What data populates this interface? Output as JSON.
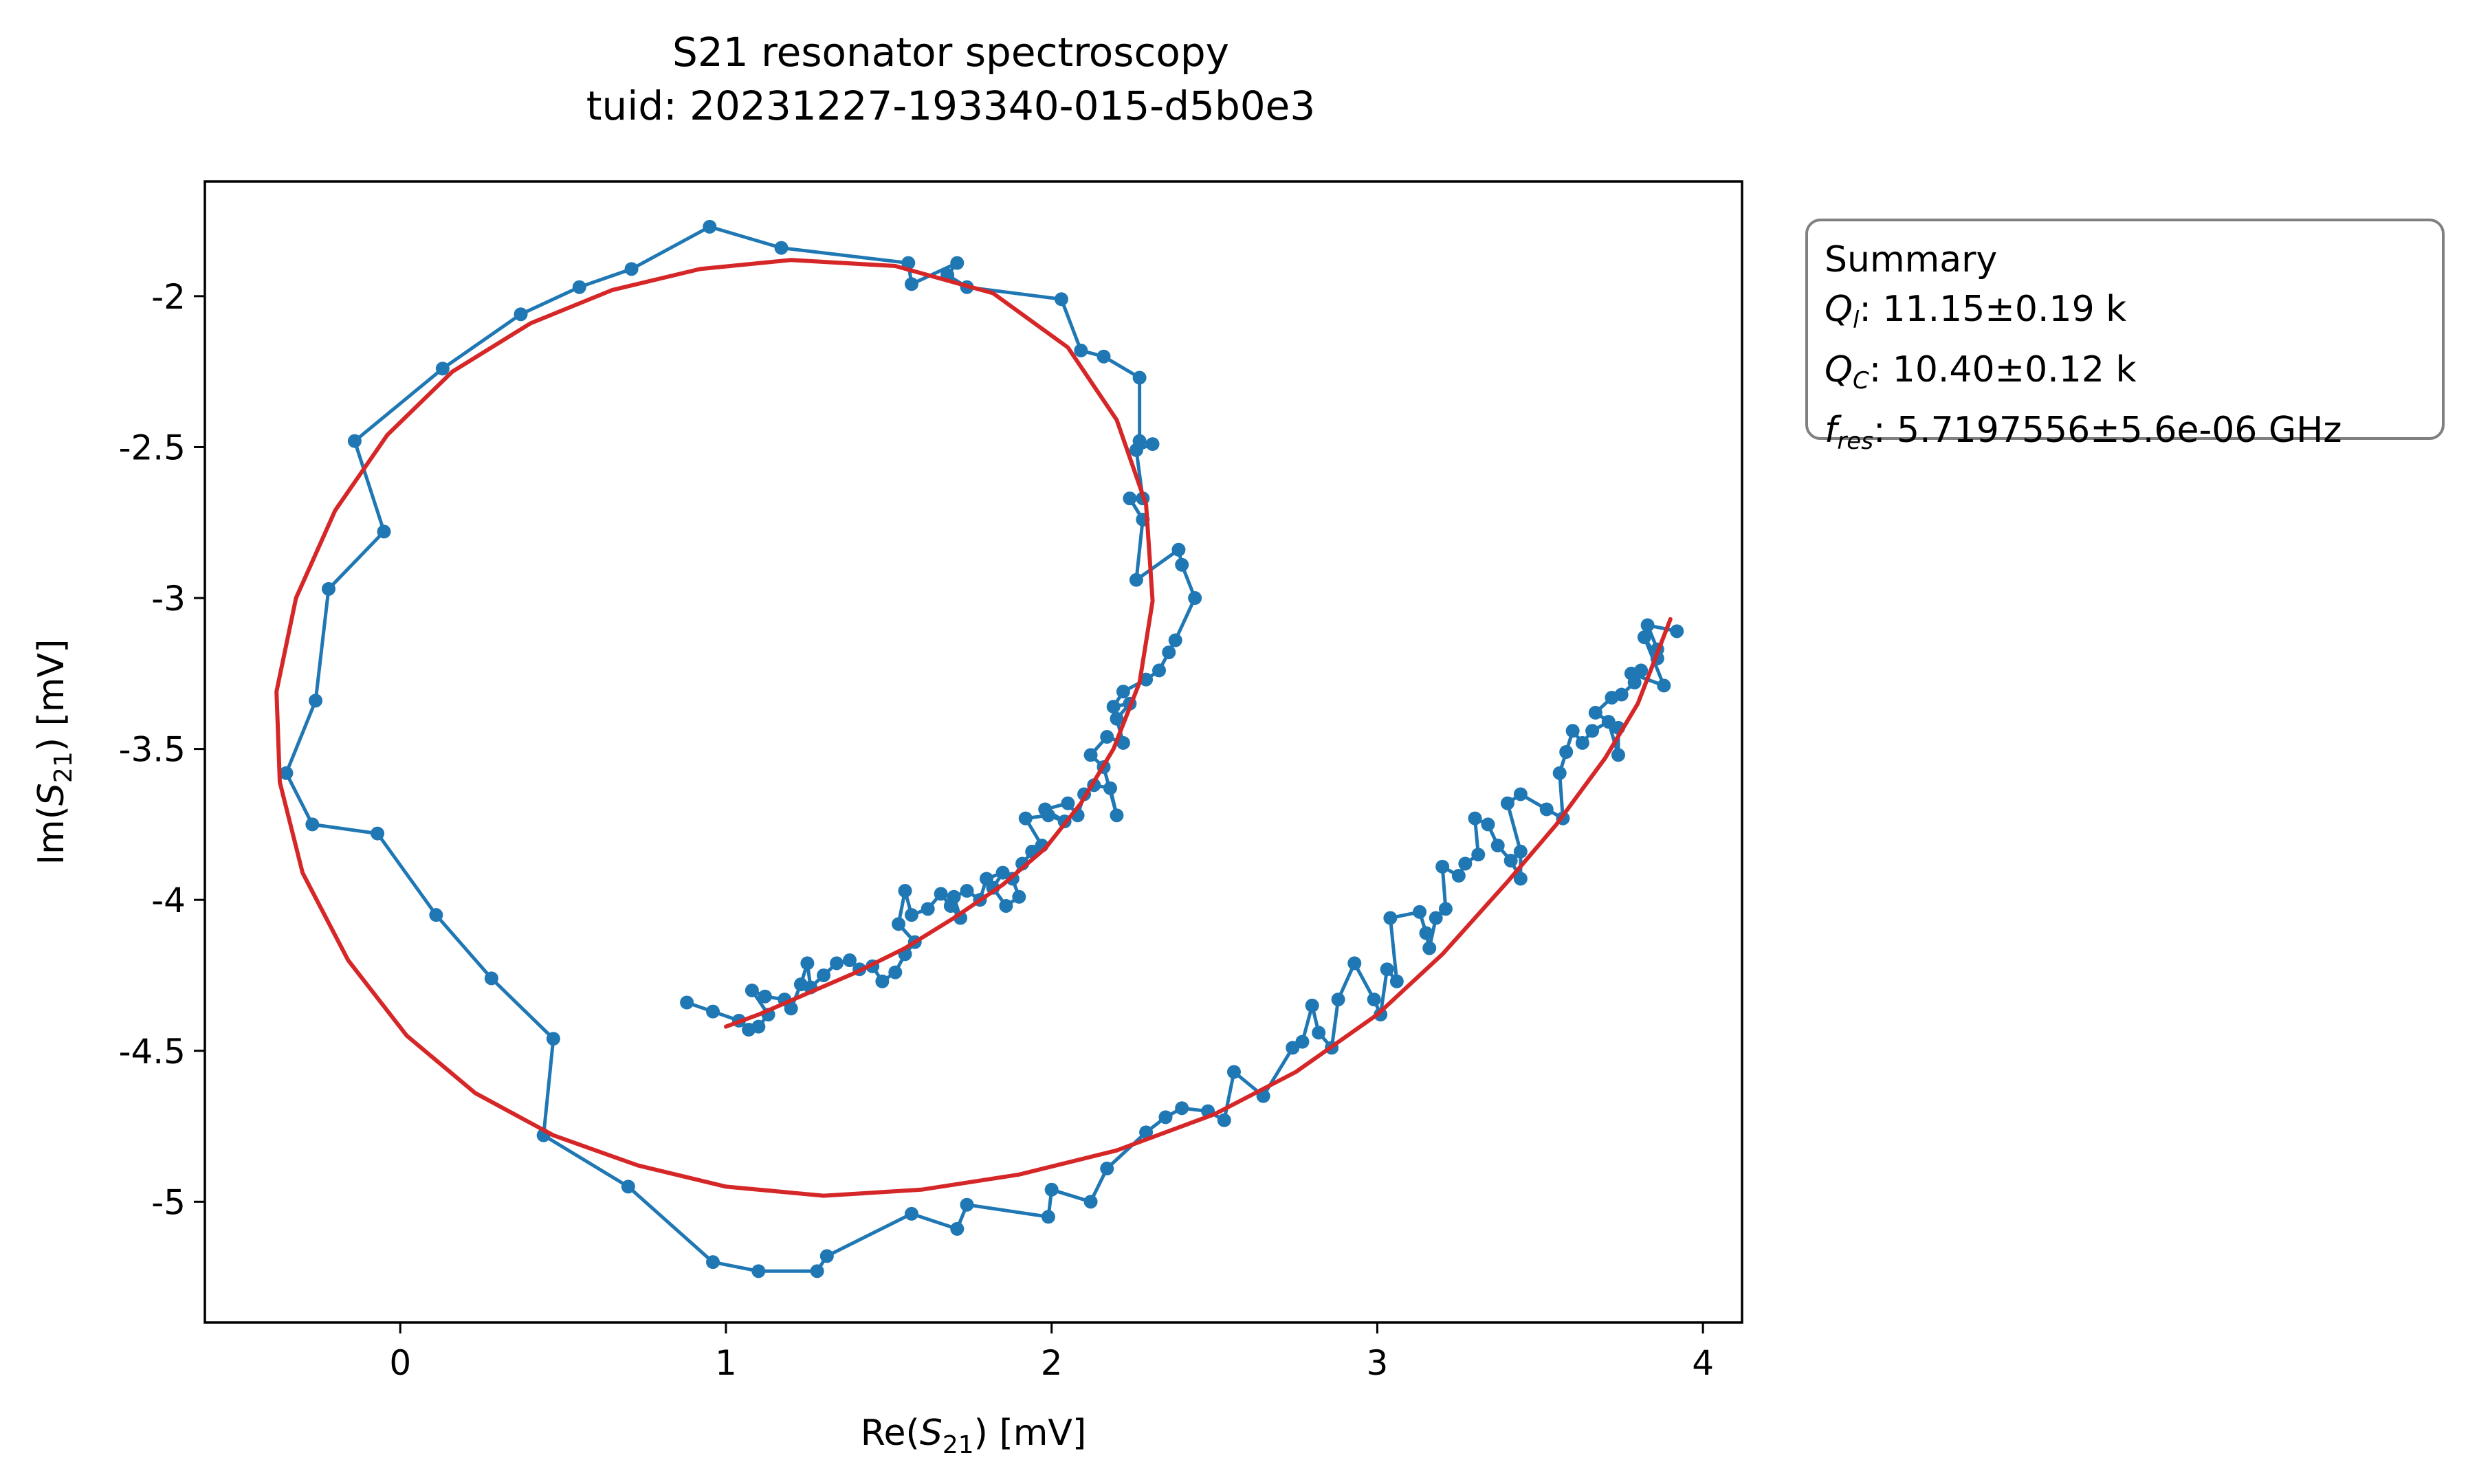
{
  "chart_data": {
    "type": "scatter",
    "title": "S21 resonator spectroscopy",
    "subtitle": "tuid: 20231227-193340-015-d5b0e3",
    "xlabel": {
      "prefix": "Re(",
      "symbol": "S",
      "subscript": "21",
      "suffix": ") [mV]"
    },
    "ylabel": {
      "prefix": "Im(",
      "symbol": "S",
      "subscript": "21",
      "suffix": ") [mV]"
    },
    "xlim": [
      -0.6,
      4.12
    ],
    "ylim": [
      -5.4,
      -1.62
    ],
    "xticks": [
      0,
      1,
      2,
      3,
      4
    ],
    "xtick_labels": [
      "0",
      "1",
      "2",
      "3",
      "4"
    ],
    "yticks": [
      -2,
      -2.5,
      -3,
      -3.5,
      -4,
      -4.5,
      -5
    ],
    "ytick_labels": [
      "-2",
      "-2.5",
      "-3",
      "-3.5",
      "-4",
      "-4.5",
      "-5"
    ],
    "grid": false,
    "series": [
      {
        "kind": "data",
        "color": "#1f77b4",
        "marker": "circle",
        "points": [
          [
            0.88,
            -4.34
          ],
          [
            0.96,
            -4.37
          ],
          [
            1.04,
            -4.4
          ],
          [
            1.07,
            -4.43
          ],
          [
            1.1,
            -4.42
          ],
          [
            1.13,
            -4.38
          ],
          [
            1.08,
            -4.3
          ],
          [
            1.12,
            -4.32
          ],
          [
            1.18,
            -4.33
          ],
          [
            1.2,
            -4.36
          ],
          [
            1.23,
            -4.28
          ],
          [
            1.25,
            -4.21
          ],
          [
            1.26,
            -4.29
          ],
          [
            1.3,
            -4.25
          ],
          [
            1.34,
            -4.21
          ],
          [
            1.38,
            -4.2
          ],
          [
            1.41,
            -4.23
          ],
          [
            1.45,
            -4.22
          ],
          [
            1.48,
            -4.27
          ],
          [
            1.52,
            -4.24
          ],
          [
            1.55,
            -4.18
          ],
          [
            1.58,
            -4.14
          ],
          [
            1.53,
            -4.08
          ],
          [
            1.55,
            -3.97
          ],
          [
            1.57,
            -4.05
          ],
          [
            1.62,
            -4.03
          ],
          [
            1.66,
            -3.98
          ],
          [
            1.69,
            -4.02
          ],
          [
            1.72,
            -4.06
          ],
          [
            1.7,
            -3.99
          ],
          [
            1.74,
            -3.97
          ],
          [
            1.78,
            -4.0
          ],
          [
            1.8,
            -3.93
          ],
          [
            1.85,
            -3.91
          ],
          [
            1.82,
            -3.96
          ],
          [
            1.86,
            -4.02
          ],
          [
            1.9,
            -3.99
          ],
          [
            1.88,
            -3.93
          ],
          [
            1.91,
            -3.88
          ],
          [
            1.94,
            -3.84
          ],
          [
            1.97,
            -3.82
          ],
          [
            1.92,
            -3.73
          ],
          [
            1.99,
            -3.72
          ],
          [
            2.04,
            -3.74
          ],
          [
            1.98,
            -3.7
          ],
          [
            2.05,
            -3.68
          ],
          [
            2.08,
            -3.72
          ],
          [
            2.1,
            -3.65
          ],
          [
            2.13,
            -3.62
          ],
          [
            2.18,
            -3.63
          ],
          [
            2.2,
            -3.72
          ],
          [
            2.16,
            -3.56
          ],
          [
            2.12,
            -3.52
          ],
          [
            2.17,
            -3.46
          ],
          [
            2.22,
            -3.48
          ],
          [
            2.2,
            -3.4
          ],
          [
            2.24,
            -3.35
          ],
          [
            2.19,
            -3.36
          ],
          [
            2.22,
            -3.31
          ],
          [
            2.29,
            -3.27
          ],
          [
            2.33,
            -3.24
          ],
          [
            2.36,
            -3.18
          ],
          [
            2.38,
            -3.14
          ],
          [
            2.44,
            -3.0
          ],
          [
            2.4,
            -2.89
          ],
          [
            2.39,
            -2.84
          ],
          [
            2.26,
            -2.94
          ],
          [
            2.28,
            -2.74
          ],
          [
            2.24,
            -2.67
          ],
          [
            2.28,
            -2.67
          ],
          [
            2.26,
            -2.51
          ],
          [
            2.31,
            -2.49
          ],
          [
            2.27,
            -2.48
          ],
          [
            2.27,
            -2.27
          ],
          [
            2.16,
            -2.2
          ],
          [
            2.09,
            -2.18
          ],
          [
            2.03,
            -2.01
          ],
          [
            1.74,
            -1.97
          ],
          [
            1.68,
            -1.93
          ],
          [
            1.71,
            -1.89
          ],
          [
            1.57,
            -1.96
          ],
          [
            1.56,
            -1.89
          ],
          [
            1.17,
            -1.84
          ],
          [
            0.95,
            -1.77
          ],
          [
            0.71,
            -1.91
          ],
          [
            0.55,
            -1.97
          ],
          [
            0.37,
            -2.06
          ],
          [
            0.13,
            -2.24
          ],
          [
            -0.14,
            -2.48
          ],
          [
            -0.05,
            -2.78
          ],
          [
            -0.22,
            -2.97
          ],
          [
            -0.26,
            -3.34
          ],
          [
            -0.35,
            -3.58
          ],
          [
            -0.27,
            -3.75
          ],
          [
            -0.07,
            -3.78
          ],
          [
            0.11,
            -4.05
          ],
          [
            0.28,
            -4.26
          ],
          [
            0.47,
            -4.46
          ],
          [
            0.44,
            -4.78
          ],
          [
            0.7,
            -4.95
          ],
          [
            0.96,
            -5.2
          ],
          [
            1.1,
            -5.23
          ],
          [
            1.28,
            -5.23
          ],
          [
            1.31,
            -5.18
          ],
          [
            1.57,
            -5.04
          ],
          [
            1.71,
            -5.09
          ],
          [
            1.74,
            -5.01
          ],
          [
            1.99,
            -5.05
          ],
          [
            2.0,
            -4.96
          ],
          [
            2.12,
            -5.0
          ],
          [
            2.17,
            -4.89
          ],
          [
            2.29,
            -4.77
          ],
          [
            2.35,
            -4.72
          ],
          [
            2.4,
            -4.69
          ],
          [
            2.48,
            -4.7
          ],
          [
            2.53,
            -4.73
          ],
          [
            2.56,
            -4.57
          ],
          [
            2.65,
            -4.65
          ],
          [
            2.74,
            -4.49
          ],
          [
            2.77,
            -4.47
          ],
          [
            2.8,
            -4.35
          ],
          [
            2.82,
            -4.44
          ],
          [
            2.86,
            -4.49
          ],
          [
            2.88,
            -4.33
          ],
          [
            2.93,
            -4.21
          ],
          [
            2.99,
            -4.33
          ],
          [
            3.01,
            -4.38
          ],
          [
            3.03,
            -4.23
          ],
          [
            3.06,
            -4.27
          ],
          [
            3.04,
            -4.06
          ],
          [
            3.13,
            -4.04
          ],
          [
            3.15,
            -4.11
          ],
          [
            3.16,
            -4.16
          ],
          [
            3.18,
            -4.06
          ],
          [
            3.21,
            -4.03
          ],
          [
            3.2,
            -3.89
          ],
          [
            3.25,
            -3.92
          ],
          [
            3.27,
            -3.88
          ],
          [
            3.31,
            -3.85
          ],
          [
            3.3,
            -3.73
          ],
          [
            3.34,
            -3.75
          ],
          [
            3.37,
            -3.82
          ],
          [
            3.41,
            -3.87
          ],
          [
            3.44,
            -3.93
          ],
          [
            3.44,
            -3.84
          ],
          [
            3.4,
            -3.68
          ],
          [
            3.44,
            -3.65
          ],
          [
            3.52,
            -3.7
          ],
          [
            3.57,
            -3.73
          ],
          [
            3.56,
            -3.58
          ],
          [
            3.58,
            -3.51
          ],
          [
            3.6,
            -3.44
          ],
          [
            3.63,
            -3.48
          ],
          [
            3.66,
            -3.44
          ],
          [
            3.71,
            -3.41
          ],
          [
            3.74,
            -3.52
          ],
          [
            3.74,
            -3.43
          ],
          [
            3.67,
            -3.38
          ],
          [
            3.72,
            -3.33
          ],
          [
            3.75,
            -3.32
          ],
          [
            3.79,
            -3.28
          ],
          [
            3.81,
            -3.24
          ],
          [
            3.78,
            -3.25
          ],
          [
            3.88,
            -3.29
          ],
          [
            3.82,
            -3.13
          ],
          [
            3.86,
            -3.2
          ],
          [
            3.86,
            -3.17
          ],
          [
            3.83,
            -3.09
          ],
          [
            3.92,
            -3.11
          ]
        ]
      },
      {
        "kind": "fit",
        "color": "#d62728",
        "points": [
          [
            1.0,
            -4.42
          ],
          [
            1.1,
            -4.38
          ],
          [
            1.25,
            -4.31
          ],
          [
            1.4,
            -4.24
          ],
          [
            1.55,
            -4.16
          ],
          [
            1.7,
            -4.06
          ],
          [
            1.85,
            -3.95
          ],
          [
            1.98,
            -3.83
          ],
          [
            2.09,
            -3.68
          ],
          [
            2.19,
            -3.5
          ],
          [
            2.27,
            -3.28
          ],
          [
            2.31,
            -3.01
          ],
          [
            2.29,
            -2.69
          ],
          [
            2.2,
            -2.41
          ],
          [
            2.05,
            -2.17
          ],
          [
            1.82,
            -1.99
          ],
          [
            1.52,
            -1.9
          ],
          [
            1.2,
            -1.88
          ],
          [
            0.92,
            -1.91
          ],
          [
            0.65,
            -1.98
          ],
          [
            0.4,
            -2.09
          ],
          [
            0.16,
            -2.25
          ],
          [
            -0.04,
            -2.46
          ],
          [
            -0.2,
            -2.71
          ],
          [
            -0.32,
            -3.0
          ],
          [
            -0.38,
            -3.31
          ],
          [
            -0.37,
            -3.61
          ],
          [
            -0.3,
            -3.91
          ],
          [
            -0.16,
            -4.2
          ],
          [
            0.02,
            -4.45
          ],
          [
            0.23,
            -4.64
          ],
          [
            0.47,
            -4.78
          ],
          [
            0.73,
            -4.88
          ],
          [
            1.0,
            -4.95
          ],
          [
            1.3,
            -4.98
          ],
          [
            1.6,
            -4.96
          ],
          [
            1.9,
            -4.91
          ],
          [
            2.2,
            -4.83
          ],
          [
            2.5,
            -4.71
          ],
          [
            2.75,
            -4.57
          ],
          [
            3.0,
            -4.38
          ],
          [
            3.2,
            -4.18
          ],
          [
            3.4,
            -3.94
          ],
          [
            3.55,
            -3.75
          ],
          [
            3.7,
            -3.53
          ],
          [
            3.8,
            -3.35
          ],
          [
            3.9,
            -3.07
          ]
        ]
      }
    ]
  },
  "summary": {
    "heading": "Summary",
    "lines": [
      {
        "symbol": "Q",
        "subscript": "l",
        "value": ": 11.15±0.19 k"
      },
      {
        "symbol": "Q",
        "subscript": "C",
        "value": ": 10.40±0.12 k"
      },
      {
        "symbol": "f",
        "subscript": "res",
        "value": ": 5.7197556±5.6e-06 GHz"
      }
    ]
  }
}
